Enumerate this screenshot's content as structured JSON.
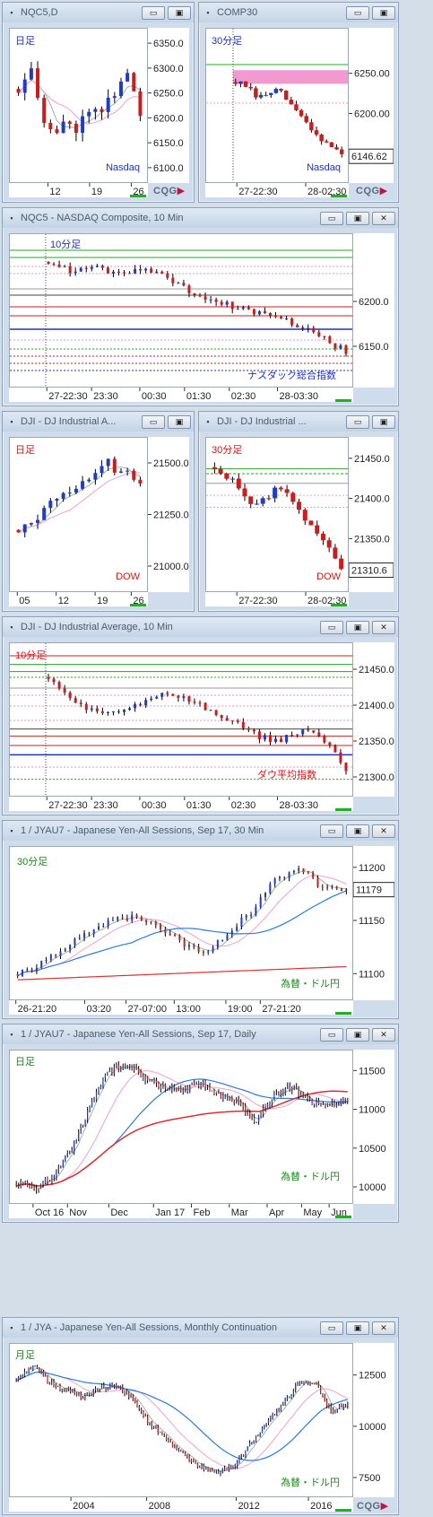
{
  "colors": {
    "up": "#1e3cc8",
    "down": "#c81e1e",
    "ma_fast": "#a0b4a0",
    "ma_mid": "#f0a0c8",
    "ma_slow": "#2a7ad8",
    "ma_long": "#d83030"
  },
  "windows": [
    {
      "id": "nqc5-daily",
      "title": "NQC5,D",
      "label_topleft": "日足",
      "label_bottomright": "Nasdaq",
      "chart_data": {
        "type": "candlestick",
        "title": "NQC5,D",
        "x_ticks": [
          "12",
          "19",
          "26"
        ],
        "y_ticks": [
          "6350.0",
          "6300.0",
          "6250.0",
          "6200.0",
          "6150.0",
          "6100.0"
        ],
        "ylim": [
          6080,
          6370
        ]
      }
    },
    {
      "id": "comp30",
      "title": "COMP30",
      "label_topleft": "30分足",
      "label_bottomright": "Nasdaq",
      "last_price": "6146.62",
      "chart_data": {
        "type": "candlestick",
        "title": "COMP30",
        "x_ticks": [
          "27-22:30",
          "28-02:30"
        ],
        "y_ticks": [
          "6250.00",
          "6200.00"
        ],
        "ylim": [
          6120,
          6300
        ]
      }
    },
    {
      "id": "nqc5-10min",
      "title": "NQC5 - NASDAQ Composite, 10 Min",
      "label_topleft": "10分足",
      "label_bottomright": "ナスダック総合指数",
      "chart_data": {
        "type": "candlestick",
        "title": "NQC5 - NASDAQ Composite, 10 Min",
        "x_ticks": [
          "27-22:30",
          "23:30",
          "00:30",
          "01:30",
          "02:30",
          "28-03:30"
        ],
        "y_ticks": [
          "6200.0",
          "6150.0"
        ],
        "ylim": [
          6110,
          6270
        ]
      }
    },
    {
      "id": "dji-daily",
      "title": "DJI - DJ Industrial A...",
      "label_topleft": "日足",
      "label_bottomright": "DOW",
      "chart_data": {
        "type": "candlestick",
        "title": "DJI - DJ Industrial A...",
        "x_ticks": [
          "05",
          "12",
          "19",
          "26"
        ],
        "y_ticks": [
          "21500.0",
          "21250.0",
          "21000.0"
        ],
        "ylim": [
          20900,
          21600
        ]
      }
    },
    {
      "id": "dji-30min",
      "title": "DJI - DJ Industrial ...",
      "label_topleft": "30分足",
      "label_bottomright": "DOW",
      "last_price": "21310.6",
      "chart_data": {
        "type": "candlestick",
        "title": "DJI - DJ Industrial ...",
        "x_ticks": [
          "27-22:30",
          "28-02:30"
        ],
        "y_ticks": [
          "21450.0",
          "21400.0",
          "21350.0"
        ],
        "ylim": [
          21290,
          21470
        ]
      }
    },
    {
      "id": "dji-10min",
      "title": "DJI - DJ Industrial Average, 10 Min",
      "label_topleft": "10分足",
      "label_bottomright": "ダウ平均指数",
      "chart_data": {
        "type": "candlestick",
        "title": "DJI - DJ Industrial Average, 10 Min",
        "x_ticks": [
          "27-22:30",
          "23:30",
          "00:30",
          "01:30",
          "02:30",
          "28-03:30"
        ],
        "y_ticks": [
          "21450.0",
          "21400.0",
          "21350.0",
          "21300.0"
        ],
        "ylim": [
          21280,
          21480
        ]
      }
    },
    {
      "id": "jyau7-30min",
      "title": "1 / JYAU7 - Japanese Yen-All Sessions, Sep 17, 30 Min",
      "label_topleft": "30分足",
      "label_bottomright": "為替・ドル円",
      "last_price": "11179",
      "chart_data": {
        "type": "candlestick",
        "title": "1 / JYAU7 - Japanese Yen-All Sessions, Sep 17, 30 Min",
        "x_ticks": [
          "26-21:20",
          "03:20",
          "27-07:00",
          "13:00",
          "19:00",
          "27-21:20"
        ],
        "y_ticks": [
          "11200",
          "11150",
          "11100"
        ],
        "ylim": [
          11080,
          11215
        ]
      }
    },
    {
      "id": "jyau7-daily",
      "title": "1 / JYAU7 - Japanese Yen-All Sessions, Sep 17, Daily",
      "label_topleft": "日足",
      "label_bottomright": "為替・ドル円",
      "chart_data": {
        "type": "candlestick",
        "title": "1 / JYAU7 - Japanese Yen-All Sessions, Sep 17, Daily",
        "x_ticks": [
          "Oct 16",
          "Nov",
          "Dec",
          "Jan 17",
          "Feb",
          "Mar",
          "Apr",
          "May",
          "Jun"
        ],
        "y_ticks": [
          "11500",
          "11000",
          "10500",
          "10000"
        ],
        "ylim": [
          9850,
          11700
        ]
      }
    },
    {
      "id": "jya-monthly",
      "title": "1 / JYA - Japanese Yen-All Sessions, Monthly Continuation",
      "label_topleft": "月足",
      "label_bottomright": "為替・ドル円",
      "chart_data": {
        "type": "candlestick",
        "title": "1 / JYA - Japanese Yen-All Sessions, Monthly Continuation",
        "x_ticks": [
          "2004",
          "2008",
          "2012",
          "2016"
        ],
        "y_ticks": [
          "12500",
          "10000",
          "7500"
        ],
        "ylim": [
          6800,
          13800
        ]
      }
    }
  ],
  "window_buttons": {
    "minimize": "▭",
    "restore": "▣",
    "close": "✕"
  },
  "brand": {
    "text": "CQG",
    "mark": "▶"
  }
}
